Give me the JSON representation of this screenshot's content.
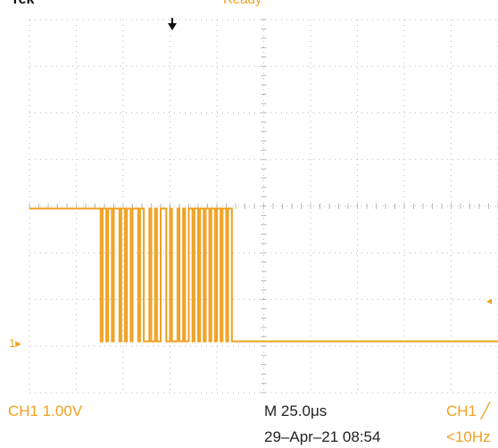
{
  "top_bar": {
    "model": "Tek",
    "acquisition_mode": "Ready",
    "colors": {
      "text": "#111111",
      "accent": "#f0a020"
    }
  },
  "display": {
    "trace_color": "#f0a020",
    "grid_color": "#b8b8b8",
    "ground_marker": "1▸",
    "trigger_marker": "◂",
    "trigger_position_icon": "trigger-position-arrow"
  },
  "chart_data": {
    "type": "line",
    "title": "",
    "xlabel": "",
    "ylabel": "",
    "x_unit": "us",
    "y_unit": "V",
    "x_per_div": 25.0,
    "y_per_div": 1.0,
    "xlim": [
      -100,
      150
    ],
    "ylim": [
      -1,
      7
    ],
    "grid": true,
    "series": [
      {
        "x": [
          -100,
          -62,
          -62,
          -61,
          -61,
          -59,
          -59,
          -58,
          -58,
          -56,
          -56,
          -55,
          -55,
          -52,
          -52,
          -51,
          -51,
          -49,
          -49,
          -48,
          -48,
          -46,
          -46,
          -45,
          -45,
          -42,
          -42,
          -41,
          -41,
          -39,
          -39,
          -36,
          -36,
          -35,
          -35,
          -33,
          -33,
          -32,
          -32,
          -30,
          -30,
          -27,
          -27,
          -25,
          -25,
          -24,
          -24,
          -21,
          -21,
          -20,
          -20,
          -18,
          -18,
          -17,
          -17,
          -15,
          -15,
          -13,
          -13,
          -12,
          -12,
          -10,
          -10,
          -9,
          -9,
          -7,
          -7,
          -6,
          -6,
          -4,
          -4,
          -3,
          -3,
          -1,
          -1,
          0,
          0,
          2,
          2,
          3,
          3,
          5,
          5,
          6,
          6,
          8,
          8,
          9,
          9,
          150
        ],
        "y": [
          2.95,
          2.95,
          0.1,
          0.1,
          2.95,
          2.95,
          0.1,
          0.1,
          2.95,
          2.95,
          0.1,
          0.1,
          2.95,
          2.95,
          0.1,
          0.1,
          2.95,
          2.95,
          0.1,
          0.1,
          2.95,
          2.95,
          0.1,
          0.1,
          2.95,
          2.95,
          0.1,
          0.1,
          2.95,
          2.95,
          0.1,
          0.1,
          2.95,
          2.95,
          0.1,
          0.1,
          2.95,
          2.95,
          0.1,
          0.1,
          2.95,
          2.95,
          0.1,
          0.1,
          2.95,
          2.95,
          0.1,
          0.1,
          2.95,
          2.95,
          0.1,
          0.1,
          2.95,
          2.95,
          0.1,
          0.1,
          2.95,
          2.95,
          0.1,
          0.1,
          2.95,
          2.95,
          0.1,
          0.1,
          2.95,
          2.95,
          0.1,
          0.1,
          2.95,
          2.95,
          0.1,
          0.1,
          2.95,
          2.95,
          0.1,
          0.1,
          2.95,
          2.95,
          0.1,
          0.1,
          2.95,
          2.95,
          0.1,
          0.1,
          2.95,
          2.95,
          0.1,
          0.1,
          0.1,
          0.1
        ]
      }
    ]
  },
  "readouts": {
    "ch1_scale": "CH1  1.00V",
    "timebase": "M 25.0μs",
    "trigger_source": "CH1 ╱",
    "timestamp": "29–Apr–21 08:54",
    "trigger_freq": "<10Hz"
  }
}
